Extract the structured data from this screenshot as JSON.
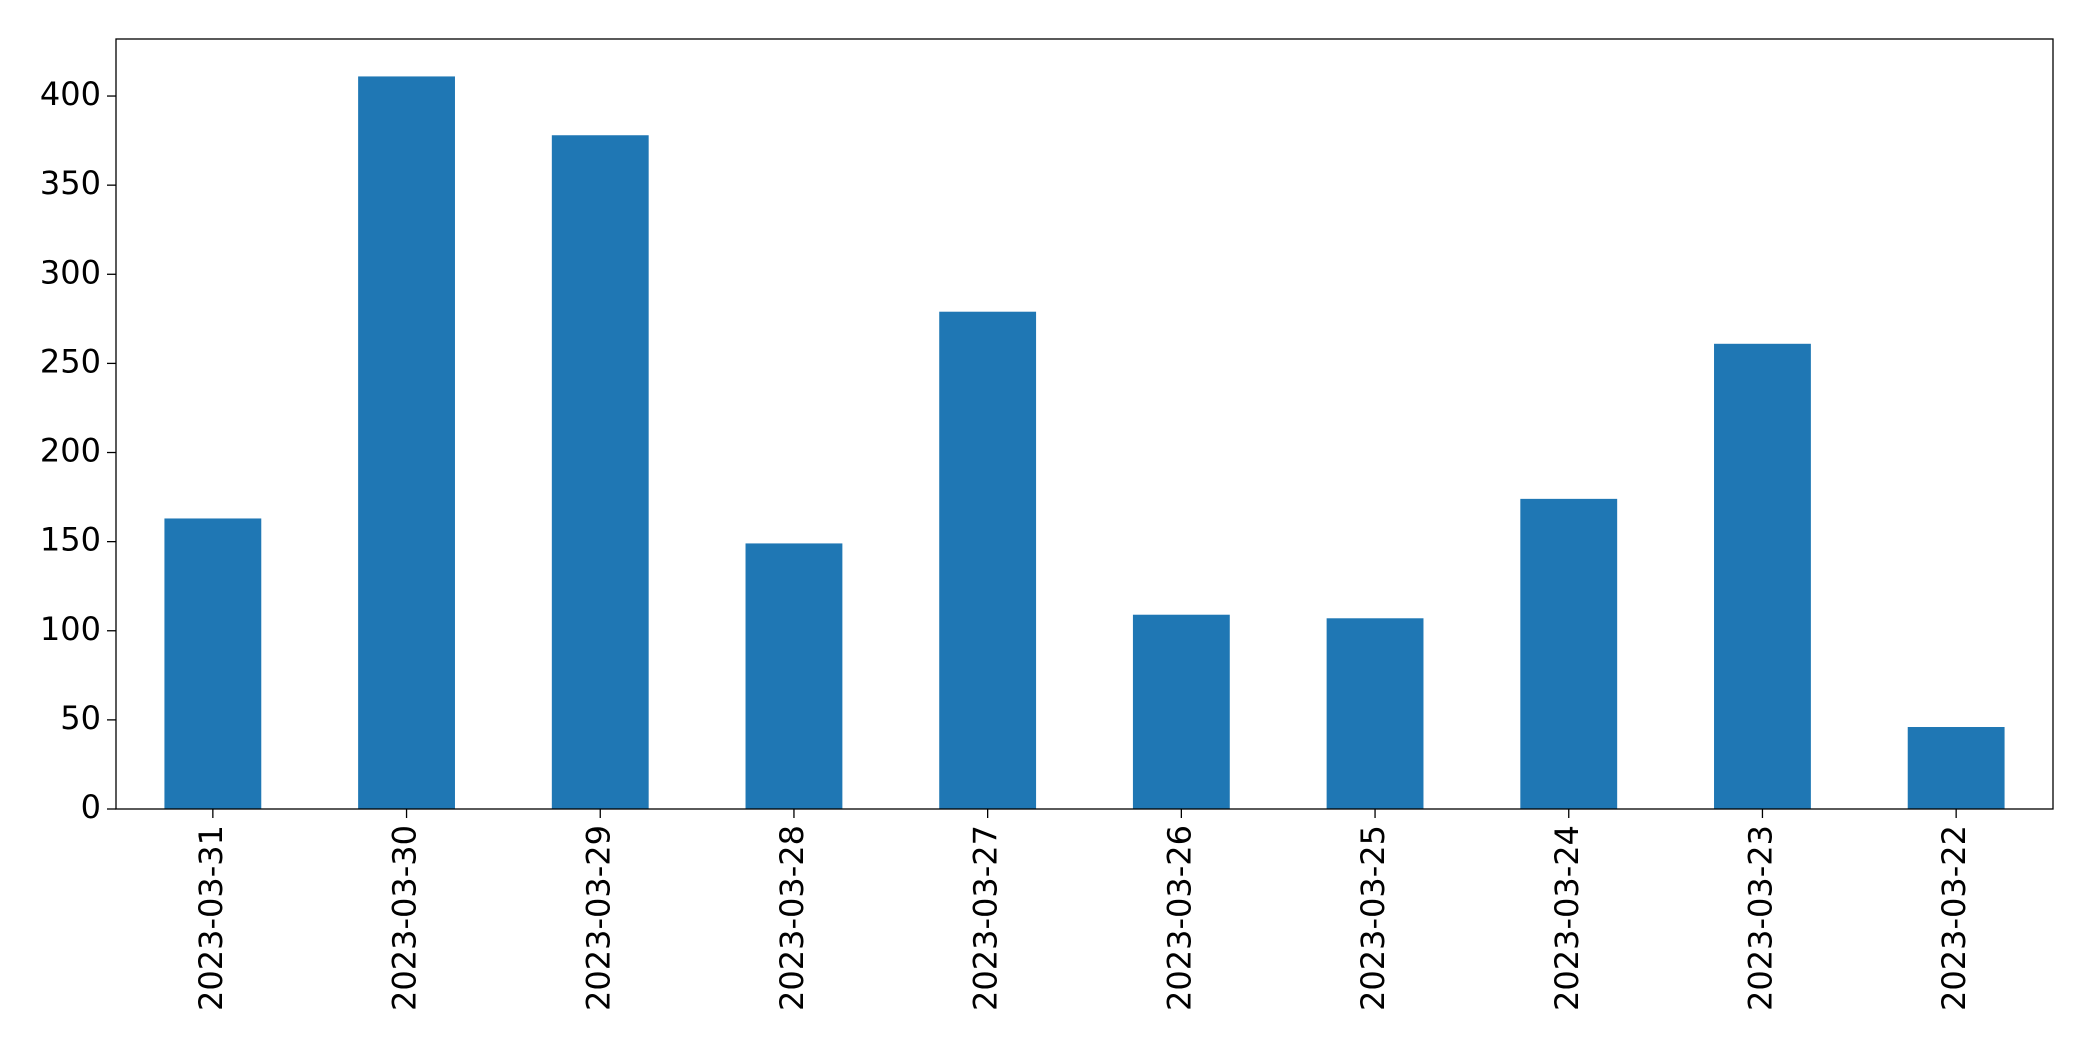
{
  "chart_data": {
    "type": "bar",
    "categories": [
      "2023-03-31",
      "2023-03-30",
      "2023-03-29",
      "2023-03-28",
      "2023-03-27",
      "2023-03-26",
      "2023-03-25",
      "2023-03-24",
      "2023-03-23",
      "2023-03-22"
    ],
    "values": [
      163,
      411,
      378,
      149,
      279,
      109,
      107,
      174,
      261,
      46
    ],
    "color": "#1f77b4",
    "ylim": [
      0,
      432
    ],
    "yticks": [
      0,
      50,
      100,
      150,
      200,
      250,
      300,
      350,
      400
    ],
    "grid": false
  }
}
